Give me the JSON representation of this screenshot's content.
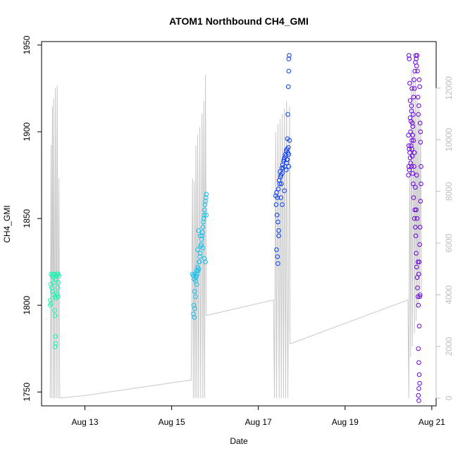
{
  "chart_data": {
    "type": "scatter",
    "title": "ATOM1 Northbound CH4_GMI",
    "xlabel": "Date",
    "ylabel": "CH4_GMI",
    "x_range_days": [
      "Aug 12 00:00",
      "Aug 21 00:00"
    ],
    "xlim": [
      12.0,
      21.1
    ],
    "ylim_left": [
      1742,
      1952
    ],
    "ylim_right": [
      -300,
      13800
    ],
    "x_ticks": [
      {
        "label": "Aug 13",
        "value": 13
      },
      {
        "label": "Aug 15",
        "value": 15
      },
      {
        "label": "Aug 17",
        "value": 17
      },
      {
        "label": "Aug 19",
        "value": 19
      },
      {
        "label": "Aug 21",
        "value": 21
      }
    ],
    "y_ticks_left": [
      {
        "label": "1750",
        "value": 1750
      },
      {
        "label": "1800",
        "value": 1800
      },
      {
        "label": "1850",
        "value": 1850
      },
      {
        "label": "1900",
        "value": 1900
      },
      {
        "label": "1950",
        "value": 1950
      }
    ],
    "y_ticks_right": [
      {
        "label": "0",
        "value": 0
      },
      {
        "label": "2000",
        "value": 2000
      },
      {
        "label": "4000",
        "value": 4000
      },
      {
        "label": "6000",
        "value": 6000
      },
      {
        "label": "8000",
        "value": 8000
      },
      {
        "label": "10000",
        "value": 10000
      },
      {
        "label": "12000",
        "value": 12000
      }
    ],
    "altitude_series": {
      "color": "#c8c8c8",
      "axis": "right",
      "points": [
        [
          12.2,
          0
        ],
        [
          12.22,
          9800
        ],
        [
          12.23,
          0
        ],
        [
          12.25,
          11300
        ],
        [
          12.27,
          0
        ],
        [
          12.28,
          11600
        ],
        [
          12.3,
          0
        ],
        [
          12.32,
          12000
        ],
        [
          12.34,
          0
        ],
        [
          12.36,
          12100
        ],
        [
          12.38,
          0
        ],
        [
          12.4,
          8500
        ],
        [
          12.42,
          0
        ],
        [
          13.0,
          100
        ],
        [
          15.45,
          700
        ],
        [
          15.48,
          8500
        ],
        [
          15.5,
          0
        ],
        [
          15.52,
          8400
        ],
        [
          15.54,
          0
        ],
        [
          15.56,
          9800
        ],
        [
          15.58,
          0
        ],
        [
          15.6,
          10200
        ],
        [
          15.62,
          0
        ],
        [
          15.65,
          10500
        ],
        [
          15.67,
          0
        ],
        [
          15.7,
          11000
        ],
        [
          15.72,
          0
        ],
        [
          15.74,
          11500
        ],
        [
          15.76,
          0
        ],
        [
          15.78,
          12500
        ],
        [
          15.8,
          3200
        ],
        [
          17.35,
          3800
        ],
        [
          17.37,
          0
        ],
        [
          17.4,
          10300
        ],
        [
          17.42,
          0
        ],
        [
          17.45,
          10600
        ],
        [
          17.48,
          0
        ],
        [
          17.5,
          10800
        ],
        [
          17.53,
          0
        ],
        [
          17.55,
          11000
        ],
        [
          17.58,
          0
        ],
        [
          17.6,
          11200
        ],
        [
          17.63,
          0
        ],
        [
          17.65,
          11500
        ],
        [
          17.68,
          0
        ],
        [
          17.72,
          11300
        ],
        [
          17.73,
          2100
        ],
        [
          20.45,
          3800
        ],
        [
          20.47,
          0
        ],
        [
          20.49,
          9200
        ],
        [
          20.51,
          1600
        ],
        [
          20.53,
          12700
        ],
        [
          20.55,
          2000
        ],
        [
          20.58,
          12600
        ],
        [
          20.6,
          2500
        ],
        [
          20.62,
          12300
        ],
        [
          20.64,
          3000
        ],
        [
          20.66,
          11700
        ],
        [
          20.68,
          3500
        ],
        [
          20.7,
          11200
        ],
        [
          20.72,
          4100
        ],
        [
          20.74,
          10800
        ],
        [
          20.76,
          4100
        ]
      ]
    },
    "flights": [
      {
        "color": "#19f5b4",
        "points": [
          [
            12.22,
            1818
          ],
          [
            12.24,
            1817
          ],
          [
            12.26,
            1818
          ],
          [
            12.28,
            1816
          ],
          [
            12.3,
            1818
          ],
          [
            12.32,
            1815
          ],
          [
            12.34,
            1817
          ],
          [
            12.36,
            1818
          ],
          [
            12.38,
            1818
          ],
          [
            12.4,
            1817
          ],
          [
            12.21,
            1812
          ],
          [
            12.23,
            1810
          ],
          [
            12.25,
            1808
          ],
          [
            12.27,
            1806
          ],
          [
            12.29,
            1813
          ],
          [
            12.31,
            1805
          ],
          [
            12.33,
            1804
          ],
          [
            12.35,
            1807
          ],
          [
            12.37,
            1810
          ],
          [
            12.2,
            1803
          ],
          [
            12.2,
            1800
          ],
          [
            12.22,
            1801
          ],
          [
            12.3,
            1797
          ],
          [
            12.31,
            1794
          ],
          [
            12.32,
            1782
          ],
          [
            12.33,
            1778
          ],
          [
            12.31,
            1776
          ],
          [
            12.36,
            1806
          ],
          [
            12.38,
            1805
          ],
          [
            12.39,
            1813
          ]
        ]
      },
      {
        "color": "#10bfef",
        "points": [
          [
            15.48,
            1818
          ],
          [
            15.5,
            1817
          ],
          [
            15.52,
            1815
          ],
          [
            15.54,
            1818
          ],
          [
            15.56,
            1816
          ],
          [
            15.58,
            1820
          ],
          [
            15.6,
            1822
          ],
          [
            15.62,
            1821
          ],
          [
            15.64,
            1825
          ],
          [
            15.66,
            1830
          ],
          [
            15.68,
            1835
          ],
          [
            15.7,
            1840
          ],
          [
            15.72,
            1845
          ],
          [
            15.74,
            1850
          ],
          [
            15.76,
            1855
          ],
          [
            15.78,
            1860
          ],
          [
            15.8,
            1864
          ],
          [
            15.79,
            1862
          ],
          [
            15.77,
            1858
          ],
          [
            15.75,
            1852
          ],
          [
            15.73,
            1848
          ],
          [
            15.71,
            1842
          ],
          [
            15.69,
            1838
          ],
          [
            15.67,
            1834
          ],
          [
            15.65,
            1828
          ],
          [
            15.63,
            1825
          ],
          [
            15.61,
            1820
          ],
          [
            15.59,
            1818
          ],
          [
            15.57,
            1817
          ],
          [
            15.55,
            1814
          ],
          [
            15.53,
            1808
          ],
          [
            15.51,
            1800
          ],
          [
            15.5,
            1795
          ],
          [
            15.52,
            1793
          ],
          [
            15.53,
            1798
          ],
          [
            15.55,
            1805
          ],
          [
            15.58,
            1812
          ],
          [
            15.6,
            1832
          ],
          [
            15.62,
            1843
          ],
          [
            15.66,
            1840
          ],
          [
            15.72,
            1833
          ],
          [
            15.75,
            1827
          ],
          [
            15.78,
            1825
          ],
          [
            15.8,
            1852
          ]
        ]
      },
      {
        "color": "#0a3cf5",
        "points": [
          [
            17.4,
            1863
          ],
          [
            17.42,
            1865
          ],
          [
            17.44,
            1862
          ],
          [
            17.46,
            1867
          ],
          [
            17.48,
            1872
          ],
          [
            17.5,
            1877
          ],
          [
            17.52,
            1875
          ],
          [
            17.54,
            1879
          ],
          [
            17.56,
            1881
          ],
          [
            17.58,
            1883
          ],
          [
            17.6,
            1885
          ],
          [
            17.62,
            1887
          ],
          [
            17.64,
            1889
          ],
          [
            17.66,
            1890
          ],
          [
            17.68,
            1888
          ],
          [
            17.7,
            1887
          ],
          [
            17.41,
            1858
          ],
          [
            17.43,
            1852
          ],
          [
            17.45,
            1848
          ],
          [
            17.47,
            1843
          ],
          [
            17.49,
            1870
          ],
          [
            17.51,
            1874
          ],
          [
            17.53,
            1870
          ],
          [
            17.55,
            1876
          ],
          [
            17.57,
            1879
          ],
          [
            17.59,
            1884
          ],
          [
            17.61,
            1880
          ],
          [
            17.63,
            1886
          ],
          [
            17.65,
            1882
          ],
          [
            17.67,
            1884
          ],
          [
            17.69,
            1891
          ],
          [
            17.42,
            1832
          ],
          [
            17.44,
            1828
          ],
          [
            17.45,
            1824
          ],
          [
            17.47,
            1840
          ],
          [
            17.52,
            1862
          ],
          [
            17.55,
            1858
          ],
          [
            17.6,
            1866
          ],
          [
            17.64,
            1878
          ],
          [
            17.67,
            1896
          ],
          [
            17.68,
            1910
          ],
          [
            17.69,
            1926
          ],
          [
            17.7,
            1935
          ],
          [
            17.7,
            1942
          ],
          [
            17.71,
            1944
          ],
          [
            17.66,
            1884
          ],
          [
            17.7,
            1880
          ],
          [
            17.72,
            1895
          ]
        ]
      },
      {
        "color": "#6a00e0",
        "points": [
          [
            20.46,
            1875
          ],
          [
            20.47,
            1880
          ],
          [
            20.48,
            1890
          ],
          [
            20.49,
            1888
          ],
          [
            20.5,
            1885
          ],
          [
            20.51,
            1900
          ],
          [
            20.52,
            1892
          ],
          [
            20.53,
            1880
          ],
          [
            20.54,
            1895
          ],
          [
            20.55,
            1905
          ],
          [
            20.56,
            1898
          ],
          [
            20.57,
            1910
          ],
          [
            20.58,
            1920
          ],
          [
            20.59,
            1930
          ],
          [
            20.6,
            1925
          ],
          [
            20.61,
            1935
          ],
          [
            20.62,
            1940
          ],
          [
            20.63,
            1944
          ],
          [
            20.64,
            1942
          ],
          [
            20.65,
            1938
          ],
          [
            20.66,
            1944
          ],
          [
            20.67,
            1935
          ],
          [
            20.68,
            1920
          ],
          [
            20.69,
            1910
          ],
          [
            20.7,
            1915
          ],
          [
            20.71,
            1930
          ],
          [
            20.72,
            1926
          ],
          [
            20.73,
            1905
          ],
          [
            20.74,
            1900
          ],
          [
            20.75,
            1880
          ],
          [
            20.47,
            1944
          ],
          [
            20.48,
            1942
          ],
          [
            20.49,
            1928
          ],
          [
            20.5,
            1918
          ],
          [
            20.52,
            1906
          ],
          [
            20.53,
            1915
          ],
          [
            20.54,
            1925
          ],
          [
            20.55,
            1886
          ],
          [
            20.56,
            1876
          ],
          [
            20.57,
            1870
          ],
          [
            20.58,
            1862
          ],
          [
            20.6,
            1850
          ],
          [
            20.61,
            1855
          ],
          [
            20.62,
            1845
          ],
          [
            20.63,
            1840
          ],
          [
            20.64,
            1830
          ],
          [
            20.65,
            1822
          ],
          [
            20.66,
            1816
          ],
          [
            20.67,
            1810
          ],
          [
            20.68,
            1805
          ],
          [
            20.69,
            1800
          ],
          [
            20.7,
            1818
          ],
          [
            20.71,
            1825
          ],
          [
            20.72,
            1835
          ],
          [
            20.73,
            1845
          ],
          [
            20.74,
            1860
          ],
          [
            20.75,
            1870
          ],
          [
            20.72,
            1805
          ],
          [
            20.73,
            1806
          ],
          [
            20.71,
            1788
          ],
          [
            20.69,
            1775
          ],
          [
            20.7,
            1767
          ],
          [
            20.71,
            1760
          ],
          [
            20.7,
            1752
          ],
          [
            20.69,
            1748
          ],
          [
            20.7,
            1745
          ],
          [
            20.72,
            1755
          ],
          [
            20.68,
            1825
          ],
          [
            20.66,
            1850
          ],
          [
            20.64,
            1855
          ],
          [
            20.62,
            1868
          ],
          [
            20.59,
            1880
          ],
          [
            20.58,
            1895
          ],
          [
            20.56,
            1903
          ],
          [
            20.54,
            1890
          ],
          [
            20.51,
            1882
          ],
          [
            20.48,
            1878
          ],
          [
            20.47,
            1892
          ],
          [
            20.46,
            1898
          ],
          [
            20.5,
            1908
          ],
          [
            20.53,
            1912
          ],
          [
            20.6,
            1888
          ],
          [
            20.65,
            1875
          ],
          [
            20.74,
            1894
          ]
        ]
      }
    ]
  }
}
